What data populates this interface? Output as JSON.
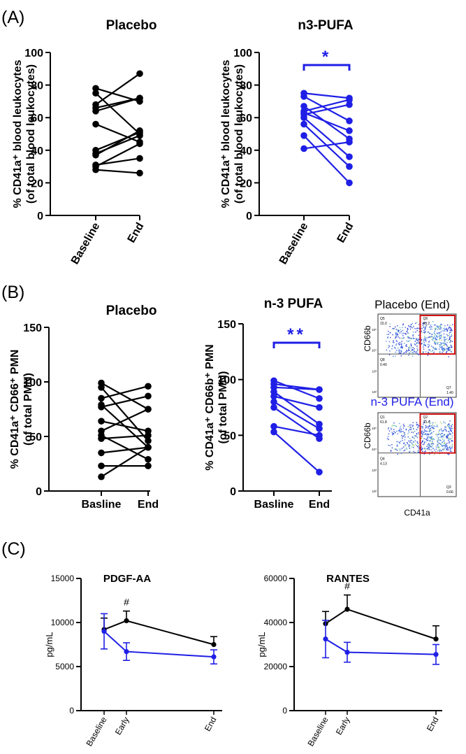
{
  "panels": {
    "a": {
      "letter": "(A)"
    },
    "b": {
      "letter": "(B)"
    },
    "c": {
      "letter": "(C)"
    }
  },
  "colors": {
    "placebo": "#000000",
    "n3": "#1f1fe6",
    "gate": "#d01010"
  },
  "flow": {
    "top_title": "Placebo (End)",
    "bottom_title": "n-3 PUFA (End)",
    "ylabel": "CD66b",
    "xlabel": "CD41a",
    "top_quadrants": {
      "q1": "Q5\n15.0",
      "q2": "Q6\n83.2",
      "q3": "Q8\n0.40",
      "q4": "Q7\n1.40"
    },
    "bottom_quadrants": {
      "q1": "Q1\n61.8",
      "q2": "Q2\n33.4",
      "q3": "Q4\n4.13",
      "q4": "Q3\n0.66"
    }
  },
  "chart_data": [
    {
      "id": "A1",
      "type": "line",
      "title": "Placebo",
      "ylabel": "% CD41a⁺ blood leukocytes\n(of total blood leukocytes)",
      "categories": [
        "Baseline",
        "End"
      ],
      "ylim": [
        0,
        100
      ],
      "yticks": [
        0,
        20,
        40,
        60,
        80,
        100
      ],
      "color": "#000000",
      "pairs": [
        [
          78,
          70
        ],
        [
          75,
          50
        ],
        [
          68,
          87
        ],
        [
          66,
          72
        ],
        [
          64,
          72
        ],
        [
          56,
          45
        ],
        [
          40,
          51
        ],
        [
          38,
          49
        ],
        [
          37,
          52
        ],
        [
          31,
          35
        ],
        [
          30,
          44
        ],
        [
          28,
          26
        ]
      ]
    },
    {
      "id": "A2",
      "type": "line",
      "title": "n3-PUFA",
      "ylabel": "% CD41a⁺ blood leukocytes\n(of total blood leukocytes)",
      "categories": [
        "Baseline",
        "End"
      ],
      "ylim": [
        0,
        100
      ],
      "yticks": [
        0,
        20,
        40,
        60,
        80,
        100
      ],
      "color": "#1f1fe6",
      "significance": "*",
      "pairs": [
        [
          75,
          72
        ],
        [
          73,
          58
        ],
        [
          67,
          47
        ],
        [
          63,
          52
        ],
        [
          62,
          68
        ],
        [
          60,
          36
        ],
        [
          56,
          30
        ],
        [
          49,
          20
        ],
        [
          41,
          45
        ],
        [
          64,
          71
        ]
      ]
    },
    {
      "id": "B1",
      "type": "line",
      "title": "Placebo",
      "ylabel": "% CD41a⁺ CD66⁺ PMN\n(of total PMN)",
      "categories": [
        "Basline",
        "End"
      ],
      "ylim": [
        0,
        150
      ],
      "yticks": [
        0,
        50,
        100,
        150
      ],
      "color": "#000000",
      "pairs": [
        [
          99,
          75
        ],
        [
          95,
          46
        ],
        [
          85,
          96
        ],
        [
          79,
          40
        ],
        [
          77,
          87
        ],
        [
          64,
          55
        ],
        [
          55,
          75
        ],
        [
          51,
          29
        ],
        [
          48,
          51
        ],
        [
          35,
          40
        ],
        [
          23,
          23
        ],
        [
          13,
          40
        ]
      ]
    },
    {
      "id": "B2",
      "type": "line",
      "title": "n-3  PUFA",
      "ylabel": "% CD41a⁺ CD66b⁺ PMN\n(of total PMN)",
      "categories": [
        "Basline",
        "End"
      ],
      "ylim": [
        0,
        150
      ],
      "yticks": [
        0,
        50,
        100,
        150
      ],
      "color": "#1f1fe6",
      "significance": "**",
      "pairs": [
        [
          99,
          83
        ],
        [
          96,
          91
        ],
        [
          93,
          91
        ],
        [
          89,
          60
        ],
        [
          85,
          75
        ],
        [
          80,
          56
        ],
        [
          75,
          47
        ],
        [
          58,
          50
        ],
        [
          53,
          17
        ]
      ]
    },
    {
      "id": "C1",
      "type": "line",
      "title": "PDGF-AA",
      "ylabel": "pg/mL",
      "x_labels": [
        "Baseline",
        "Early",
        "End"
      ],
      "x": [
        0,
        1,
        5
      ],
      "ylim": [
        0,
        15000
      ],
      "yticks": [
        0,
        5000,
        10000,
        15000
      ],
      "annotation": "#",
      "series": [
        {
          "color": "#000000",
          "values": [
            9200,
            10200,
            7500
          ],
          "err": [
            1300,
            1100,
            900
          ]
        },
        {
          "color": "#1f1fe6",
          "values": [
            9000,
            6700,
            6100
          ],
          "err": [
            2000,
            1000,
            800
          ]
        }
      ]
    },
    {
      "id": "C2",
      "type": "line",
      "title": "RANTES",
      "ylabel": "pg/mL",
      "x_labels": [
        "Baseline",
        "Early",
        "End"
      ],
      "x": [
        0,
        1,
        5
      ],
      "ylim": [
        0,
        60000
      ],
      "yticks": [
        0,
        20000,
        40000,
        60000
      ],
      "annotation": "#",
      "series": [
        {
          "color": "#000000",
          "values": [
            39500,
            46000,
            32500
          ],
          "err": [
            5500,
            6500,
            6000
          ]
        },
        {
          "color": "#1f1fe6",
          "values": [
            32500,
            26500,
            25500
          ],
          "err": [
            8500,
            4500,
            4500
          ]
        }
      ]
    }
  ]
}
